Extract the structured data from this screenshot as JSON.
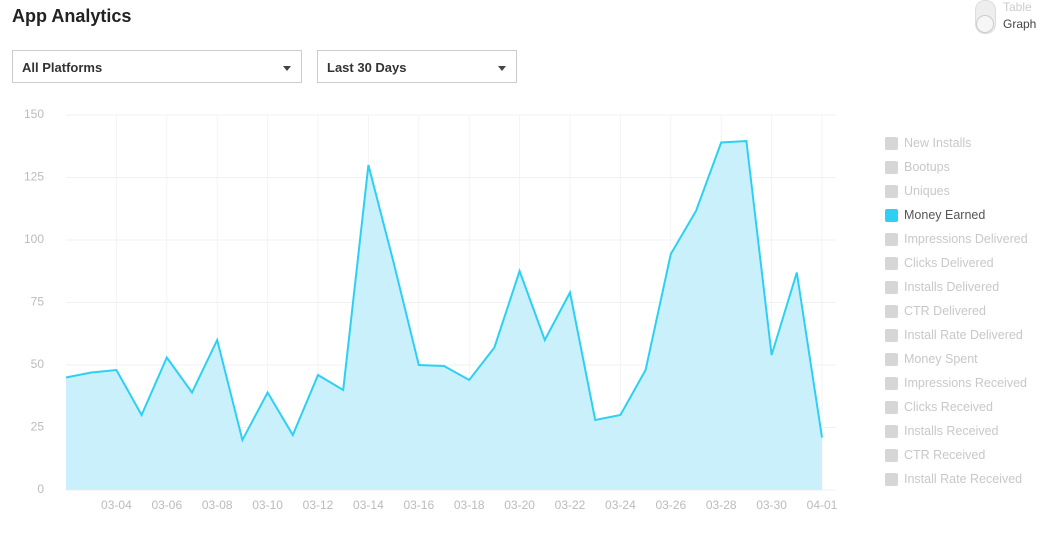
{
  "header": {
    "title": "App Analytics"
  },
  "view_toggle": {
    "options": [
      "Table",
      "Graph"
    ]
  },
  "filters": [
    "All Platforms",
    "Last 30 Days"
  ],
  "chart_data": {
    "type": "area",
    "categories": [
      null,
      null,
      "03-04",
      null,
      "03-06",
      null,
      "03-08",
      null,
      "03-10",
      null,
      "03-12",
      null,
      "03-14",
      null,
      "03-16",
      null,
      "03-18",
      null,
      "03-20",
      null,
      "03-22",
      null,
      "03-24",
      null,
      "03-26",
      null,
      "03-28",
      null,
      "03-30",
      null,
      "04-01"
    ],
    "series": [
      {
        "color": "#2dd0f5",
        "fill": "#c9f0fb",
        "values": [
          45,
          47,
          48,
          30,
          53,
          39,
          60,
          20,
          39,
          22,
          46,
          40,
          130,
          91,
          50,
          49.6,
          44,
          57,
          87.6,
          60,
          79,
          28,
          30,
          48,
          94.4,
          111.6,
          139,
          139.6,
          54,
          87,
          21
        ]
      }
    ],
    "ylim": [
      0,
      150
    ],
    "yticks": [
      0,
      25,
      50,
      75,
      100,
      125,
      150
    ],
    "grid": true
  },
  "metrics": [
    {
      "label": "New Installs",
      "selected": false
    },
    {
      "label": "Bootups",
      "selected": false
    },
    {
      "label": "Uniques",
      "selected": false
    },
    {
      "label": "Money Earned",
      "selected": true
    },
    {
      "label": "Impressions Delivered",
      "selected": false
    },
    {
      "label": "Clicks Delivered",
      "selected": false
    },
    {
      "label": "Installs Delivered",
      "selected": false
    },
    {
      "label": "CTR Delivered",
      "selected": false
    },
    {
      "label": "Install Rate Delivered",
      "selected": false
    },
    {
      "label": "Money Spent",
      "selected": false
    },
    {
      "label": "Impressions Received",
      "selected": false
    },
    {
      "label": "Clicks Received",
      "selected": false
    },
    {
      "label": "Installs Received",
      "selected": false
    },
    {
      "label": "CTR Received",
      "selected": false
    },
    {
      "label": "Install Rate Received",
      "selected": false
    }
  ]
}
